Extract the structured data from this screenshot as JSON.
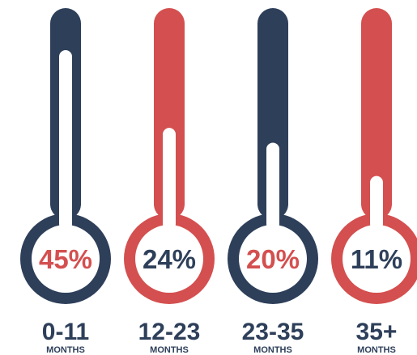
{
  "chart_data": {
    "type": "bar",
    "style": "thermometer",
    "categories": [
      "0-11",
      "12-23",
      "23-35",
      "35+"
    ],
    "category_unit": "MONTHS",
    "values": [
      45,
      24,
      20,
      11
    ],
    "value_labels": [
      "45%",
      "24%",
      "20%",
      "11%"
    ],
    "value_colors": [
      "#d44f4f",
      "#2e3f5a",
      "#d44f4f",
      "#2e3f5a"
    ],
    "thermometer_colors": [
      "#2e3f5a",
      "#d44f4f",
      "#2e3f5a",
      "#d44f4f"
    ],
    "ylim": [
      0,
      100
    ],
    "title": "",
    "xlabel": "",
    "ylabel": ""
  }
}
